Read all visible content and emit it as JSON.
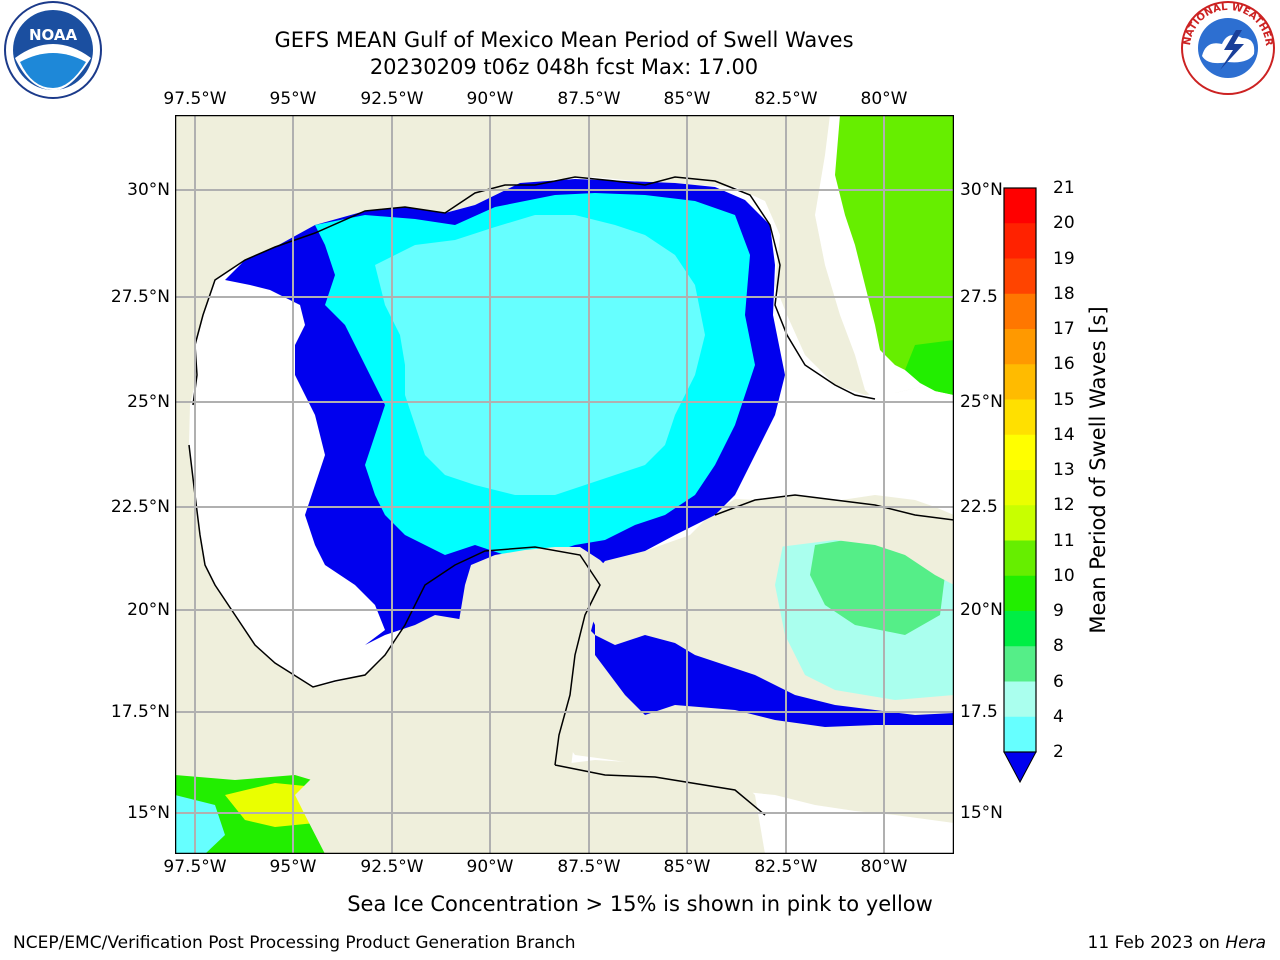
{
  "title": "GEFS MEAN Gulf of Mexico Mean Period of Swell Waves",
  "subtitle": "20230209 t06z 048h fcst   Max: 17.00",
  "lon_labels": [
    "97.5°W",
    "95°W",
    "92.5°W",
    "90°W",
    "87.5°W",
    "85°W",
    "82.5°W",
    "80°W"
  ],
  "lat_labels_left": [
    "30°N",
    "27.5°N",
    "25°N",
    "22.5°N",
    "20°N",
    "17.5°N",
    "15°N"
  ],
  "lat_labels_right": [
    "30°N",
    "27.5",
    "25°N",
    "22.5",
    "20°N",
    "17.5",
    "15°N"
  ],
  "colorbar": {
    "label": "Mean Period of Swell Waves [s]",
    "ticks": [
      "21",
      "20",
      "19",
      "18",
      "17",
      "16",
      "15",
      "14",
      "13",
      "12",
      "11",
      "10",
      "9",
      "8",
      "6",
      "4",
      "2"
    ],
    "colors": [
      "#ff0000",
      "#ff2200",
      "#ff4400",
      "#ff7700",
      "#ff9900",
      "#ffbb00",
      "#ffe000",
      "#ffff00",
      "#eaff00",
      "#c8ff00",
      "#66ee00",
      "#22ee00",
      "#00ee44",
      "#55ee88",
      "#aaffee",
      "#66ffff",
      "#00ffff",
      "#0077ff"
    ],
    "extend_color": "#0000ee"
  },
  "map": {
    "land_color": "#efefdc",
    "ocean_color": "#ffffff",
    "grid_color": "#b0b0b0"
  },
  "note": "Sea Ice Concentration > 15% is shown in pink to yellow",
  "footer_left": "NCEP/EMC/Verification Post Processing Product Generation Branch",
  "footer_right_date": "11 Feb 2023 on ",
  "footer_right_host": "Hera",
  "logos": {
    "left": "NOAA",
    "right_ring": "NATIONAL WEATHER SERVICE"
  }
}
